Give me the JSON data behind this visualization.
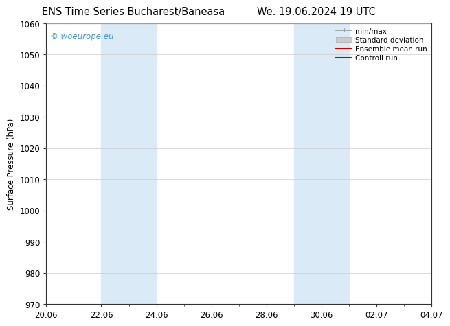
{
  "title_left": "ENS Time Series Bucharest/Baneasa",
  "title_right": "We. 19.06.2024 19 UTC",
  "ylabel": "Surface Pressure (hPa)",
  "ylim": [
    970,
    1060
  ],
  "yticks": [
    970,
    980,
    990,
    1000,
    1010,
    1020,
    1030,
    1040,
    1050,
    1060
  ],
  "xlim_start": 0.0,
  "xlim_end": 14.0,
  "xtick_labels": [
    "20.06",
    "22.06",
    "24.06",
    "26.06",
    "28.06",
    "30.06",
    "02.07",
    "04.07"
  ],
  "xtick_positions": [
    0,
    2,
    4,
    6,
    8,
    10,
    12,
    14
  ],
  "shaded_bands": [
    {
      "x_start": 2.0,
      "x_end": 4.0
    },
    {
      "x_start": 9.0,
      "x_end": 11.0
    }
  ],
  "shade_color": "#daeaf6",
  "watermark_text": "© woeurope.eu",
  "watermark_color": "#4499cc",
  "legend_entries": [
    {
      "label": "min/max",
      "color": "#999999",
      "linewidth": 1.2
    },
    {
      "label": "Standard deviation",
      "color": "#cccccc",
      "linewidth": 6
    },
    {
      "label": "Ensemble mean run",
      "color": "#cc0000",
      "linewidth": 1.5
    },
    {
      "label": "Controll run",
      "color": "#006600",
      "linewidth": 1.5
    }
  ],
  "background_color": "#ffffff",
  "grid_color": "#cccccc",
  "title_fontsize": 10.5,
  "axis_label_fontsize": 8.5,
  "tick_fontsize": 8.5,
  "watermark_fontsize": 8.5
}
